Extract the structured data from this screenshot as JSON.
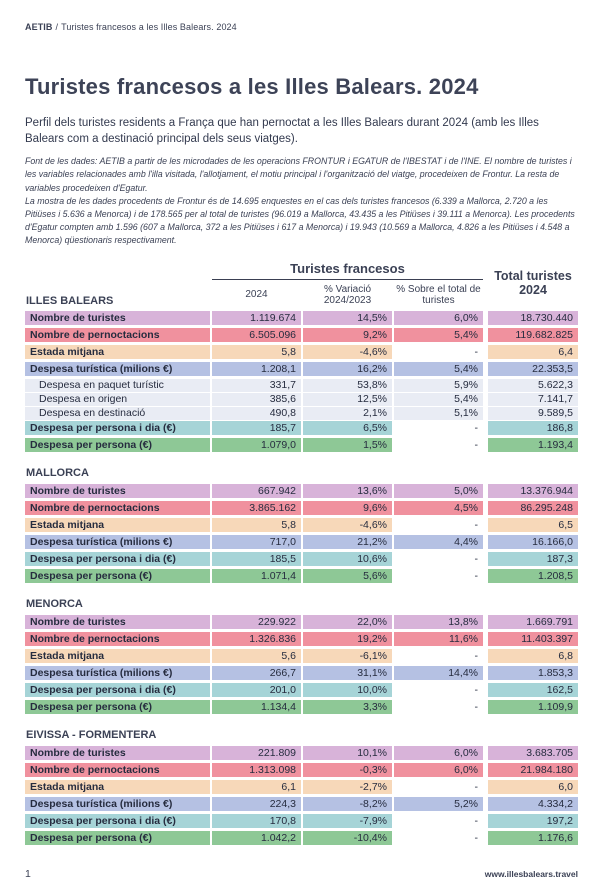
{
  "header": {
    "brand": "AETIB",
    "separator": "/",
    "breadcrumb_path": "Turistes francesos a les Illes Balears. 2024"
  },
  "title": "Turistes francesos a les Illes Balears. 2024",
  "intro": "Perfil dels turistes residents a França que han pernoctat a les Illes Balears durant 2024 (amb les Illes Balears com a destinació principal dels seus viatges).",
  "notes": {
    "p1": "Font de les dades: AETIB a partir de les microdades de les operacions FRONTUR i EGATUR de l'IBESTAT i de l'INE. El nombre de turistes i les variables relacionades amb l'illa visitada, l'allotjament, el motiu principal i l'organització del viatge, procedeixen de Frontur. La resta de variables procedeixen d'Egatur.",
    "p2": "La mostra de les dades procedents de Frontur és de 14.695 enquestes en el cas dels turistes francesos (6.339 a Mallorca, 2.720 a les Pitiüses i 5.636 a Menorca) i de 178.565 per al total de turistes (96.019 a Mallorca, 43.435 a les Pitiüses i 39.111 a Menorca). Les procedents d'Egatur compten amb 1.596 (607 a Mallorca, 372 a les Pitiüses i 617 a Menorca) i 19.943 (10.569 a Mallorca, 4.826 a les Pitiüses i 4.548 a Menorca) qüestionaris respectivament."
  },
  "table": {
    "header": {
      "group": "Turistes francesos",
      "col_2024": "2024",
      "col_variacio": "% Variació 2024/2023",
      "col_sobre": "% Sobre el total de turistes",
      "col_total": "Total turistes 2024"
    },
    "row_colors": {
      "lilac": "#d8b3d9",
      "pink": "#f0919e",
      "peach": "#f7d8b9",
      "blue": "#b5c1e3",
      "sub": "#e9ecf4",
      "teal": "#a6d4d7",
      "green": "#8ec896"
    },
    "sections": [
      {
        "name": "ILLES BALEARS",
        "rows": [
          {
            "label": "Nombre de turistes",
            "style": "lilac",
            "values": [
              "1.119.674",
              "14,5%",
              "6,0%",
              "18.730.440"
            ]
          },
          {
            "label": "Nombre de pernoctacions",
            "style": "pink",
            "values": [
              "6.505.096",
              "9,2%",
              "5,4%",
              "119.682.825"
            ]
          },
          {
            "label": "Estada mitjana",
            "style": "peach",
            "values": [
              "5,8",
              "-4,6%",
              "-",
              "6,4"
            ]
          },
          {
            "label": "Despesa turística (milions €)",
            "style": "blue",
            "values": [
              "1.208,1",
              "16,2%",
              "5,4%",
              "22.353,5"
            ]
          },
          {
            "label": "Despesa en paquet turístic",
            "style": "sub",
            "values": [
              "331,7",
              "53,8%",
              "5,9%",
              "5.622,3"
            ]
          },
          {
            "label": "Despesa en origen",
            "style": "sub",
            "values": [
              "385,6",
              "12,5%",
              "5,4%",
              "7.141,7"
            ]
          },
          {
            "label": "Despesa en destinació",
            "style": "sub",
            "values": [
              "490,8",
              "2,1%",
              "5,1%",
              "9.589,5"
            ]
          },
          {
            "label": "Despesa per persona i dia (€)",
            "style": "teal",
            "values": [
              "185,7",
              "6,5%",
              "-",
              "186,8"
            ]
          },
          {
            "label": "Despesa per persona (€)",
            "style": "green",
            "values": [
              "1.079,0",
              "1,5%",
              "-",
              "1.193,4"
            ]
          }
        ]
      },
      {
        "name": "MALLORCA",
        "rows": [
          {
            "label": "Nombre de turistes",
            "style": "lilac",
            "values": [
              "667.942",
              "13,6%",
              "5,0%",
              "13.376.944"
            ]
          },
          {
            "label": "Nombre de pernoctacions",
            "style": "pink",
            "values": [
              "3.865.162",
              "9,6%",
              "4,5%",
              "86.295.248"
            ]
          },
          {
            "label": "Estada mitjana",
            "style": "peach",
            "values": [
              "5,8",
              "-4,6%",
              "-",
              "6,5"
            ]
          },
          {
            "label": "Despesa turística (milions €)",
            "style": "blue",
            "values": [
              "717,0",
              "21,2%",
              "4,4%",
              "16.166,0"
            ]
          },
          {
            "label": "Despesa per persona i dia (€)",
            "style": "teal",
            "values": [
              "185,5",
              "10,6%",
              "-",
              "187,3"
            ]
          },
          {
            "label": "Despesa per persona (€)",
            "style": "green",
            "values": [
              "1.071,4",
              "5,6%",
              "-",
              "1.208,5"
            ]
          }
        ]
      },
      {
        "name": "MENORCA",
        "rows": [
          {
            "label": "Nombre de turistes",
            "style": "lilac",
            "values": [
              "229.922",
              "22,0%",
              "13,8%",
              "1.669.791"
            ]
          },
          {
            "label": "Nombre de pernoctacions",
            "style": "pink",
            "values": [
              "1.326.836",
              "19,2%",
              "11,6%",
              "11.403.397"
            ]
          },
          {
            "label": "Estada mitjana",
            "style": "peach",
            "values": [
              "5,6",
              "-6,1%",
              "-",
              "6,8"
            ]
          },
          {
            "label": "Despesa turística (milions €)",
            "style": "blue",
            "values": [
              "266,7",
              "31,1%",
              "14,4%",
              "1.853,3"
            ]
          },
          {
            "label": "Despesa per persona i dia (€)",
            "style": "teal",
            "values": [
              "201,0",
              "10,0%",
              "-",
              "162,5"
            ]
          },
          {
            "label": "Despesa per persona (€)",
            "style": "green",
            "values": [
              "1.134,4",
              "3,3%",
              "-",
              "1.109,9"
            ]
          }
        ]
      },
      {
        "name": "EIVISSA - FORMENTERA",
        "rows": [
          {
            "label": "Nombre de turistes",
            "style": "lilac",
            "values": [
              "221.809",
              "10,1%",
              "6,0%",
              "3.683.705"
            ]
          },
          {
            "label": "Nombre de pernoctacions",
            "style": "pink",
            "values": [
              "1.313.098",
              "-0,3%",
              "6,0%",
              "21.984.180"
            ]
          },
          {
            "label": "Estada mitjana",
            "style": "peach",
            "values": [
              "6,1",
              "-2,7%",
              "-",
              "6,0"
            ]
          },
          {
            "label": "Despesa turística (milions €)",
            "style": "blue",
            "values": [
              "224,3",
              "-8,2%",
              "5,2%",
              "4.334,2"
            ]
          },
          {
            "label": "Despesa per persona i dia (€)",
            "style": "teal",
            "values": [
              "170,8",
              "-7,9%",
              "-",
              "197,2"
            ]
          },
          {
            "label": "Despesa per persona (€)",
            "style": "green",
            "values": [
              "1.042,2",
              "-10,4%",
              "-",
              "1.176,6"
            ]
          }
        ]
      }
    ]
  },
  "footer": {
    "page_number": "1",
    "website": "www.illesbalears.travel"
  }
}
